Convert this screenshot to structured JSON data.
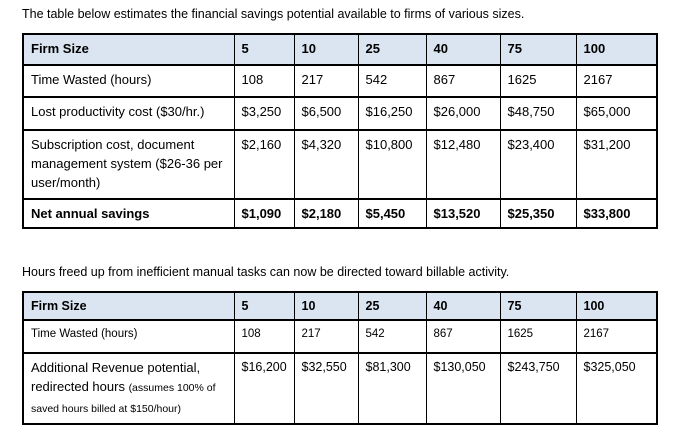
{
  "colors": {
    "header_fill": "#dbe5f1",
    "table_border": "#000000",
    "text": "#000000"
  },
  "captions": {
    "savings_intro": "The table below estimates the financial savings potential available to firms of various sizes.",
    "revenue_intro": "Hours freed up from inefficient manual tasks can now be directed toward billable activity."
  },
  "savings_table": {
    "header": {
      "label": "Firm Size",
      "firm_sizes": [
        "5",
        "10",
        "25",
        "40",
        "75",
        "100"
      ]
    },
    "rows": [
      {
        "label": "Time Wasted (hours)",
        "values": [
          "108",
          "217",
          "542",
          "867",
          "1625",
          "2167"
        ]
      },
      {
        "label": "Lost productivity cost ($30/hr.)",
        "values": [
          "$3,250",
          "$6,500",
          "$16,250",
          "$26,000",
          "$48,750",
          "$65,000"
        ]
      },
      {
        "label": "Subscription cost, document management system ($26-36 per user/month)",
        "values": [
          "$2,160",
          "$4,320",
          "$10,800",
          "$12,480",
          "$23,400",
          "$31,200"
        ]
      },
      {
        "label": "Net annual savings",
        "values": [
          "$1,090",
          "$2,180",
          "$5,450",
          "$13,520",
          "$25,350",
          "$33,800"
        ]
      }
    ]
  },
  "revenue_table": {
    "header": {
      "label": "Firm Size",
      "firm_sizes": [
        "5",
        "10",
        "25",
        "40",
        "75",
        "100"
      ]
    },
    "rows": [
      {
        "label": "Time Wasted (hours)",
        "values": [
          "108",
          "217",
          "542",
          "867",
          "1625",
          "2167"
        ]
      },
      {
        "label_main": "Additional Revenue potential, redirected hours ",
        "label_note": "(assumes 100% of saved hours billed at $150/hour)",
        "values": [
          "$16,200",
          "$32,550",
          "$81,300",
          "$130,050",
          "$243,750",
          "$325,050"
        ]
      }
    ]
  }
}
